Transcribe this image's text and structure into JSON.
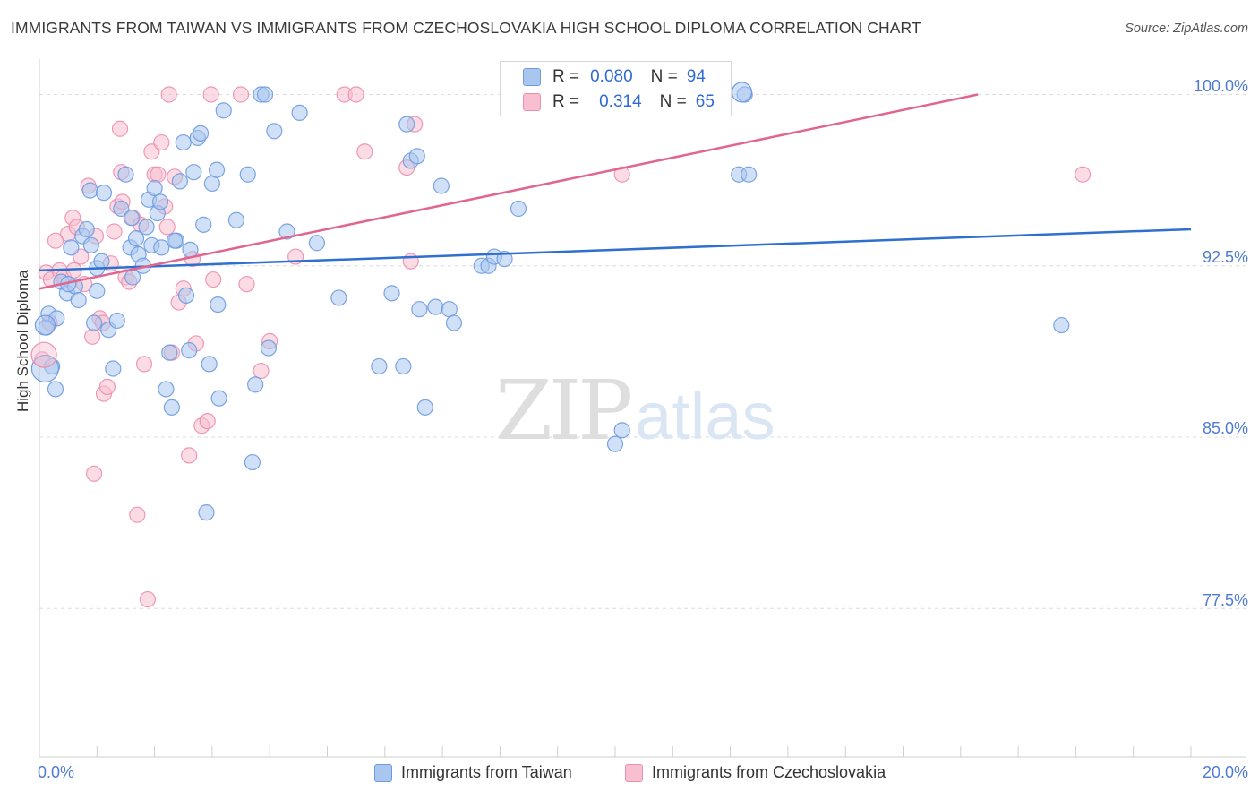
{
  "title": "IMMIGRANTS FROM TAIWAN VS IMMIGRANTS FROM CZECHOSLOVAKIA HIGH SCHOOL DIPLOMA CORRELATION CHART",
  "source": "Source: ZipAtlas.com",
  "watermark": {
    "zip": "ZIP",
    "atlas": "atlas"
  },
  "colors": {
    "taiwan_fill": "#a9c6ef",
    "taiwan_stroke": "#6e9be0",
    "taiwan_line": "#2e6fcf",
    "czech_fill": "#f7bfd0",
    "czech_stroke": "#ec8fae",
    "czech_line": "#e06690",
    "tick_text": "#4f7bd0",
    "grid": "#dcdcdc"
  },
  "legend": {
    "rows": [
      {
        "r_label": "R =",
        "r_value": "0.080",
        "n_label": "N =",
        "n_value": "94"
      },
      {
        "r_label": "R =",
        "r_value": "0.314",
        "n_label": "N =",
        "n_value": "65"
      }
    ]
  },
  "chart_data": {
    "type": "scatter",
    "title": "IMMIGRANTS FROM TAIWAN VS IMMIGRANTS FROM CZECHOSLOVAKIA HIGH SCHOOL DIPLOMA CORRELATION CHART",
    "xlabel": "",
    "ylabel": "High School Diploma",
    "xlim": [
      0,
      20
    ],
    "ylim": [
      71,
      101
    ],
    "x_tick_labels": [
      "0.0%",
      "20.0%"
    ],
    "y_ticks": [
      77.5,
      85.0,
      92.5,
      100.0
    ],
    "y_tick_labels": [
      "77.5%",
      "85.0%",
      "92.5%",
      "100.0%"
    ],
    "grid": true,
    "legend_position": "bottom",
    "series": [
      {
        "name": "Immigrants from Taiwan",
        "R": 0.08,
        "N": 94,
        "trend": {
          "x": [
            0,
            20
          ],
          "y": [
            92.3,
            94.1
          ]
        },
        "points": [
          [
            0.12,
            89.8
          ],
          [
            0.16,
            90.4
          ],
          [
            0.22,
            88.1
          ],
          [
            0.28,
            87.1
          ],
          [
            0.38,
            91.8
          ],
          [
            0.48,
            91.3
          ],
          [
            0.55,
            93.3
          ],
          [
            0.62,
            91.6
          ],
          [
            0.68,
            91.0
          ],
          [
            0.75,
            93.8
          ],
          [
            0.82,
            94.1
          ],
          [
            0.88,
            95.8
          ],
          [
            0.95,
            90.0
          ],
          [
            1.0,
            92.4
          ],
          [
            1.08,
            92.7
          ],
          [
            1.12,
            95.7
          ],
          [
            1.2,
            89.7
          ],
          [
            1.28,
            88.0
          ],
          [
            1.35,
            90.1
          ],
          [
            1.42,
            95.0
          ],
          [
            1.5,
            96.5
          ],
          [
            1.58,
            93.3
          ],
          [
            1.62,
            92.0
          ],
          [
            1.68,
            93.7
          ],
          [
            1.72,
            93.0
          ],
          [
            1.8,
            92.5
          ],
          [
            1.86,
            94.2
          ],
          [
            1.9,
            95.4
          ],
          [
            1.95,
            93.4
          ],
          [
            2.0,
            95.9
          ],
          [
            2.05,
            94.8
          ],
          [
            2.12,
            93.3
          ],
          [
            2.2,
            87.1
          ],
          [
            2.26,
            88.7
          ],
          [
            2.3,
            86.3
          ],
          [
            2.38,
            93.6
          ],
          [
            2.44,
            96.2
          ],
          [
            2.5,
            97.9
          ],
          [
            2.55,
            91.2
          ],
          [
            2.6,
            88.8
          ],
          [
            2.62,
            93.2
          ],
          [
            2.68,
            96.6
          ],
          [
            2.75,
            98.1
          ],
          [
            2.8,
            98.3
          ],
          [
            2.85,
            94.3
          ],
          [
            2.9,
            81.7
          ],
          [
            2.95,
            88.2
          ],
          [
            3.0,
            96.1
          ],
          [
            3.08,
            96.7
          ],
          [
            3.12,
            86.7
          ],
          [
            3.2,
            99.3
          ],
          [
            3.42,
            94.5
          ],
          [
            3.62,
            96.5
          ],
          [
            3.7,
            83.9
          ],
          [
            3.75,
            87.3
          ],
          [
            3.85,
            100.0
          ],
          [
            3.92,
            100.0
          ],
          [
            3.98,
            88.9
          ],
          [
            4.08,
            98.4
          ],
          [
            4.3,
            94.0
          ],
          [
            4.52,
            99.2
          ],
          [
            4.82,
            93.5
          ],
          [
            5.9,
            88.1
          ],
          [
            6.12,
            91.3
          ],
          [
            6.32,
            88.1
          ],
          [
            6.38,
            98.7
          ],
          [
            6.45,
            97.1
          ],
          [
            6.56,
            97.3
          ],
          [
            6.6,
            90.6
          ],
          [
            6.7,
            86.3
          ],
          [
            6.88,
            90.7
          ],
          [
            6.98,
            96.0
          ],
          [
            7.12,
            90.6
          ],
          [
            7.2,
            90.0
          ],
          [
            7.68,
            92.5
          ],
          [
            7.8,
            92.5
          ],
          [
            7.9,
            92.9
          ],
          [
            8.08,
            92.8
          ],
          [
            8.32,
            95.0
          ],
          [
            10.12,
            85.3
          ],
          [
            10.0,
            84.7
          ],
          [
            12.25,
            100.0
          ],
          [
            12.15,
            96.5
          ],
          [
            12.32,
            96.5
          ],
          [
            17.75,
            89.9
          ],
          [
            1.0,
            91.4
          ],
          [
            0.5,
            91.7
          ],
          [
            2.1,
            95.3
          ],
          [
            1.6,
            94.6
          ],
          [
            0.9,
            93.4
          ],
          [
            2.35,
            93.6
          ],
          [
            5.2,
            91.1
          ],
          [
            3.1,
            90.8
          ],
          [
            0.3,
            90.2
          ]
        ]
      },
      {
        "name": "Immigrants from Czechoslovakia",
        "R": 0.314,
        "N": 65,
        "trend": {
          "x": [
            0,
            16.3
          ],
          "y": [
            91.5,
            100.0
          ]
        },
        "points": [
          [
            0.05,
            88.4
          ],
          [
            0.12,
            92.2
          ],
          [
            0.2,
            91.9
          ],
          [
            0.28,
            93.6
          ],
          [
            0.35,
            92.3
          ],
          [
            0.42,
            92.0
          ],
          [
            0.5,
            93.9
          ],
          [
            0.58,
            94.6
          ],
          [
            0.65,
            94.2
          ],
          [
            0.72,
            92.9
          ],
          [
            0.78,
            91.7
          ],
          [
            0.85,
            96.0
          ],
          [
            0.92,
            89.4
          ],
          [
            0.98,
            93.8
          ],
          [
            1.05,
            90.2
          ],
          [
            1.12,
            86.9
          ],
          [
            1.18,
            87.2
          ],
          [
            1.24,
            92.6
          ],
          [
            1.3,
            94.0
          ],
          [
            1.36,
            95.1
          ],
          [
            1.44,
            95.3
          ],
          [
            1.5,
            92.0
          ],
          [
            1.56,
            91.8
          ],
          [
            1.62,
            94.6
          ],
          [
            1.7,
            81.6
          ],
          [
            1.76,
            94.3
          ],
          [
            1.82,
            88.2
          ],
          [
            1.88,
            77.9
          ],
          [
            1.95,
            97.5
          ],
          [
            2.0,
            96.5
          ],
          [
            2.06,
            96.5
          ],
          [
            2.12,
            97.9
          ],
          [
            2.18,
            95.1
          ],
          [
            2.22,
            94.2
          ],
          [
            2.3,
            88.7
          ],
          [
            2.35,
            96.4
          ],
          [
            2.42,
            90.9
          ],
          [
            2.5,
            91.5
          ],
          [
            2.6,
            84.2
          ],
          [
            2.72,
            89.1
          ],
          [
            2.82,
            85.5
          ],
          [
            2.92,
            85.7
          ],
          [
            3.02,
            91.9
          ],
          [
            3.6,
            91.7
          ],
          [
            3.85,
            87.9
          ],
          [
            4.0,
            89.2
          ],
          [
            4.45,
            92.9
          ],
          [
            5.3,
            100.0
          ],
          [
            5.5,
            100.0
          ],
          [
            5.65,
            97.5
          ],
          [
            6.38,
            96.8
          ],
          [
            6.52,
            98.7
          ],
          [
            6.45,
            92.7
          ],
          [
            10.12,
            96.5
          ],
          [
            18.12,
            96.5
          ],
          [
            0.95,
            83.4
          ],
          [
            0.6,
            92.3
          ],
          [
            1.42,
            96.6
          ],
          [
            2.25,
            100.0
          ],
          [
            3.5,
            100.0
          ],
          [
            2.98,
            100.0
          ],
          [
            1.4,
            98.5
          ],
          [
            0.18,
            90.0
          ],
          [
            1.1,
            90.0
          ],
          [
            2.66,
            92.8
          ]
        ]
      }
    ]
  },
  "axes": {
    "y_tick_labels": [
      "100.0%",
      "92.5%",
      "85.0%",
      "77.5%"
    ],
    "x_tick_left": "0.0%",
    "x_tick_right": "20.0%"
  },
  "bottom_legend": {
    "taiwan": "Immigrants from Taiwan",
    "czech": "Immigrants from Czechoslovakia"
  }
}
